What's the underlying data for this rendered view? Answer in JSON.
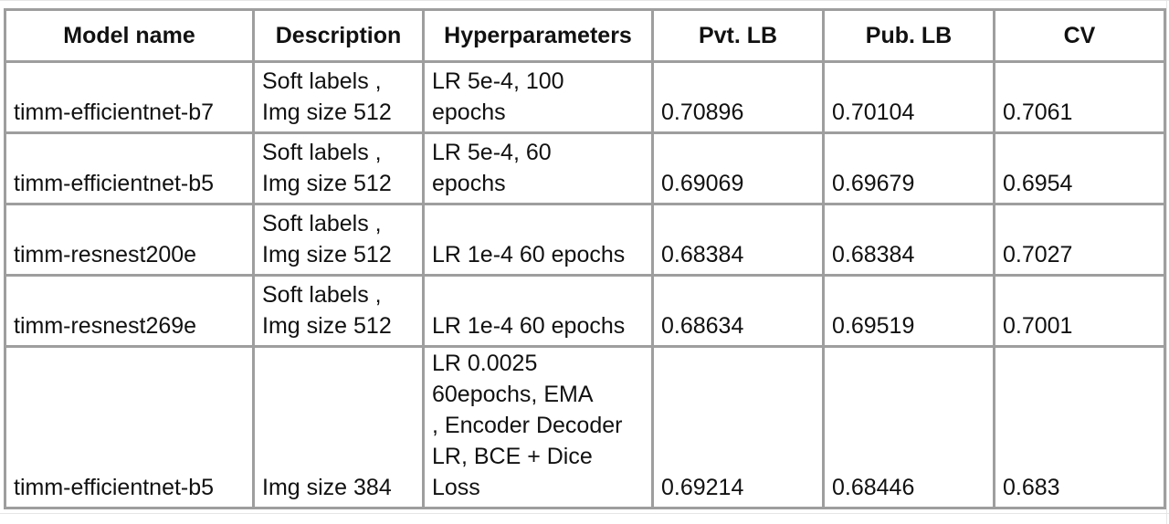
{
  "table": {
    "header": [
      "Model name",
      "Description",
      "Hyperparameters",
      "Pvt. LB",
      "Pub. LB",
      "CV"
    ],
    "rows": [
      [
        [
          "timm-efficientnet-b7"
        ],
        [
          "Soft labels ,",
          "Img size 512"
        ],
        [
          "LR 5e-4, 100",
          "epochs"
        ],
        [
          "0.70896"
        ],
        [
          "0.70104"
        ],
        [
          "0.7061"
        ]
      ],
      [
        [
          "timm-efficientnet-b5"
        ],
        [
          "Soft labels ,",
          "Img size 512"
        ],
        [
          "LR 5e-4, 60",
          "epochs"
        ],
        [
          "0.69069"
        ],
        [
          "0.69679"
        ],
        [
          "0.6954"
        ]
      ],
      [
        [
          "timm-resnest200e"
        ],
        [
          "Soft labels ,",
          "Img size 512"
        ],
        [
          "LR 1e-4 60 epochs"
        ],
        [
          "0.68384"
        ],
        [
          "0.68384"
        ],
        [
          "0.7027"
        ]
      ],
      [
        [
          "timm-resnest269e"
        ],
        [
          "Soft labels ,",
          "Img size 512"
        ],
        [
          "LR 1e-4 60 epochs"
        ],
        [
          "0.68634"
        ],
        [
          "0.69519"
        ],
        [
          "0.7001"
        ]
      ],
      [
        [
          "timm-efficientnet-b5"
        ],
        [
          "Img size 384"
        ],
        [
          "LR 0.0025",
          "60epochs, EMA",
          ", Encoder Decoder",
          "LR, BCE + Dice",
          "Loss"
        ],
        [
          "0.69214"
        ],
        [
          "0.68446"
        ],
        [
          "0.683"
        ]
      ]
    ]
  }
}
